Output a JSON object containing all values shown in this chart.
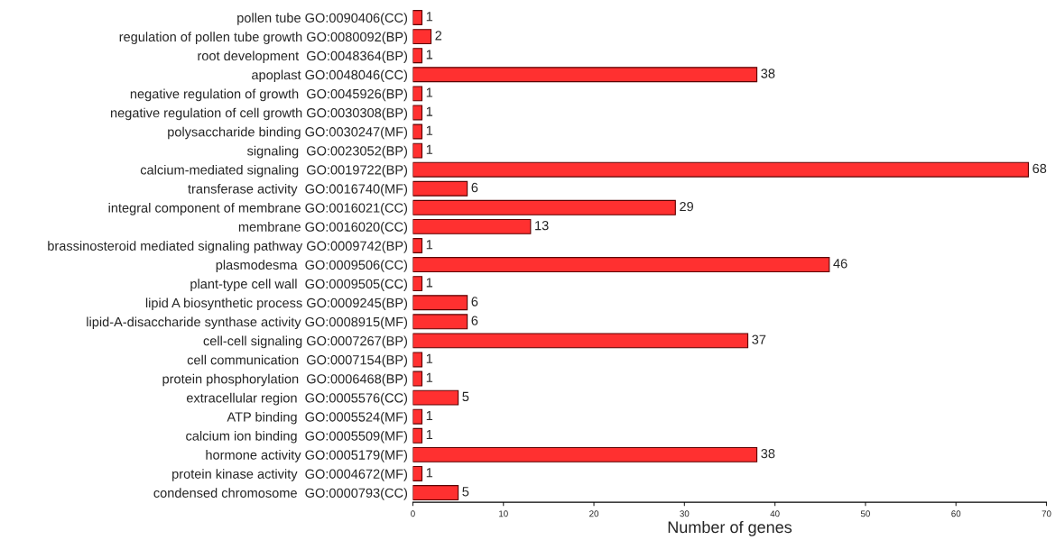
{
  "chart_data": {
    "type": "bar",
    "orientation": "horizontal",
    "xlabel": "Number of genes",
    "categories": [
      "pollen tube GO:0090406(CC)",
      "regulation of pollen tube growth GO:0080092(BP)",
      "root development  GO:0048364(BP)",
      "apoplast GO:0048046(CC)",
      "negative regulation of growth  GO:0045926(BP)",
      "negative regulation of cell growth GO:0030308(BP)",
      "polysaccharide binding GO:0030247(MF)",
      "signaling  GO:0023052(BP)",
      "calcium-mediated signaling  GO:0019722(BP)",
      "transferase activity  GO:0016740(MF)",
      "integral component of membrane GO:0016021(CC)",
      "membrane GO:0016020(CC)",
      "brassinosteroid mediated signaling pathway GO:0009742(BP)",
      "plasmodesma  GO:0009506(CC)",
      "plant-type cell wall  GO:0009505(CC)",
      "lipid A biosynthetic process GO:0009245(BP)",
      "lipid-A-disaccharide synthase activity GO:0008915(MF)",
      "cell-cell signaling GO:0007267(BP)",
      "cell communication  GO:0007154(BP)",
      "protein phosphorylation  GO:0006468(BP)",
      "extracellular region  GO:0005576(CC)",
      "ATP binding  GO:0005524(MF)",
      "calcium ion binding  GO:0005509(MF)",
      "hormone activity GO:0005179(MF)",
      "protein kinase activity  GO:0004672(MF)",
      "condensed chromosome  GO:0000793(CC)"
    ],
    "values": [
      1,
      2,
      1,
      38,
      1,
      1,
      1,
      1,
      68,
      6,
      29,
      13,
      1,
      46,
      1,
      6,
      6,
      37,
      1,
      1,
      5,
      1,
      1,
      38,
      1,
      5
    ],
    "color": "#ff3030",
    "data_labels": true,
    "grid": false,
    "xlim": [
      0,
      70
    ],
    "xticks": [
      0,
      10,
      20,
      30,
      40,
      50,
      60,
      70
    ]
  }
}
